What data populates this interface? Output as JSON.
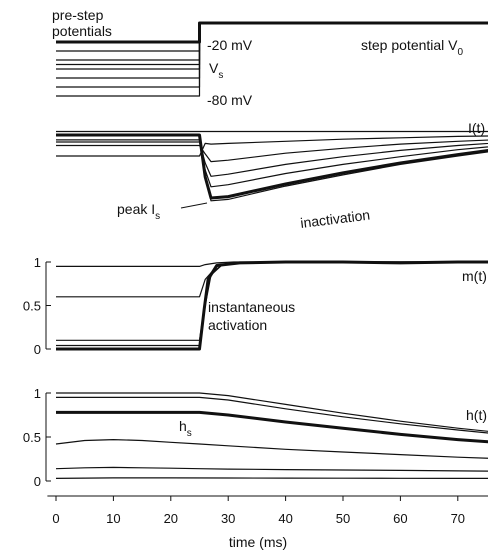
{
  "chart_data": {
    "type": "line",
    "xlabel": "time (ms)",
    "xlim": [
      -1.5,
      79
    ],
    "x_ticks": [
      0,
      10,
      20,
      30,
      40,
      50,
      60,
      70
    ],
    "step_time": 25,
    "panels": [
      {
        "id": "voltage",
        "labels": {
          "prestep": [
            "pre-step",
            "potentials"
          ],
          "top_value": "-20 mV",
          "vs": "V",
          "vs_sub": "s",
          "bottom_value": "-80 mV",
          "step": "step potential  V",
          "step_sub": "0"
        },
        "series": [
          {
            "pre": -20,
            "post": 30,
            "thick": true
          },
          {
            "pre": -30,
            "post": 30
          },
          {
            "pre": -40,
            "post": 30
          },
          {
            "pre": -45,
            "post": 30
          },
          {
            "pre": -50,
            "post": 30
          },
          {
            "pre": -60,
            "post": 30
          },
          {
            "pre": -70,
            "post": 30
          },
          {
            "pre": -80,
            "post": 30
          }
        ]
      },
      {
        "id": "current",
        "labels": {
          "trace": "I(t)",
          "peak": "peak  I",
          "peak_sub": "s",
          "inactivation": "inactivation"
        },
        "series": [
          {
            "x": [
              0,
              25,
              26,
              27,
              30,
              40,
              50,
              60,
              70,
              79
            ],
            "y": [
              1.0,
              1.0,
              0.4,
              0.1,
              0.12,
              0.3,
              0.46,
              0.6,
              0.72,
              0.82
            ],
            "thick": true
          },
          {
            "x": [
              0,
              25,
              26,
              27,
              30,
              40,
              50,
              60,
              70,
              79
            ],
            "y": [
              1.0,
              1.0,
              0.4,
              0.06,
              0.08,
              0.27,
              0.43,
              0.58,
              0.7,
              0.8
            ]
          },
          {
            "x": [
              0,
              25,
              26,
              27,
              30,
              40,
              50,
              60,
              70,
              79
            ],
            "y": [
              0.93,
              0.93,
              0.5,
              0.26,
              0.29,
              0.45,
              0.58,
              0.69,
              0.79,
              0.86
            ]
          },
          {
            "x": [
              0,
              25,
              26,
              27,
              30,
              40,
              50,
              60,
              70,
              79
            ],
            "y": [
              0.9,
              0.9,
              0.6,
              0.41,
              0.44,
              0.58,
              0.69,
              0.78,
              0.85,
              0.9
            ]
          },
          {
            "x": [
              0,
              25,
              26,
              27,
              30,
              40,
              50,
              60,
              70,
              79
            ],
            "y": [
              0.85,
              0.85,
              0.73,
              0.62,
              0.64,
              0.74,
              0.81,
              0.87,
              0.91,
              0.94
            ]
          },
          {
            "x": [
              0,
              25,
              26,
              27,
              30,
              40,
              50,
              60,
              70,
              79
            ],
            "y": [
              0.7,
              0.7,
              0.88,
              0.87,
              0.88,
              0.91,
              0.94,
              0.96,
              0.98,
              0.99
            ]
          },
          {
            "x": [
              0,
              25,
              79
            ],
            "y": [
              1.05,
              1.05,
              1.05
            ]
          }
        ]
      },
      {
        "id": "activation",
        "labels": {
          "trace": "m(t)",
          "annotation": [
            "instantaneous",
            "activation"
          ]
        },
        "ylim": [
          0,
          1
        ],
        "y_ticks": [
          0,
          0.5,
          1
        ],
        "y_tick_labels": [
          "0",
          "0.5",
          "1"
        ],
        "series": [
          {
            "x": [
              0,
              25,
              25.8,
              26.5,
              28,
              32,
              40,
              50,
              60,
              70,
              79
            ],
            "y": [
              0,
              0,
              0.45,
              0.8,
              0.96,
              0.99,
              1,
              1,
              0.99,
              1,
              1
            ],
            "thick": true
          },
          {
            "x": [
              0,
              25,
              26,
              27,
              29,
              32,
              40,
              79
            ],
            "y": [
              0.04,
              0.04,
              0.5,
              0.85,
              0.97,
              0.99,
              1,
              1
            ]
          },
          {
            "x": [
              0,
              25,
              26,
              27,
              29,
              32,
              40,
              79
            ],
            "y": [
              0.1,
              0.1,
              0.55,
              0.87,
              0.97,
              0.99,
              1,
              1
            ]
          },
          {
            "x": [
              0,
              25,
              26,
              28,
              31,
              40,
              79
            ],
            "y": [
              0.6,
              0.6,
              0.8,
              0.95,
              0.99,
              1,
              1
            ]
          },
          {
            "x": [
              0,
              25,
              26,
              28,
              31,
              40,
              79
            ],
            "y": [
              0.95,
              0.95,
              0.97,
              0.99,
              1,
              1,
              1
            ]
          }
        ]
      },
      {
        "id": "inactivation",
        "labels": {
          "trace": "h(t)",
          "hs": "h",
          "hs_sub": "s"
        },
        "ylim": [
          0,
          1
        ],
        "y_ticks": [
          0,
          0.5,
          1
        ],
        "y_tick_labels": [
          "0",
          "0.5",
          "1"
        ],
        "series": [
          {
            "x": [
              0,
              25,
              30,
              40,
              50,
              60,
              70,
              79
            ],
            "y": [
              0.78,
              0.78,
              0.75,
              0.67,
              0.6,
              0.53,
              0.47,
              0.43
            ],
            "thick": true
          },
          {
            "x": [
              0,
              25,
              30,
              40,
              50,
              60,
              70,
              79
            ],
            "y": [
              1.0,
              1.0,
              0.97,
              0.87,
              0.77,
              0.68,
              0.6,
              0.54
            ]
          },
          {
            "x": [
              0,
              25,
              30,
              40,
              50,
              60,
              70,
              79
            ],
            "y": [
              0.95,
              0.95,
              0.92,
              0.82,
              0.73,
              0.65,
              0.58,
              0.52
            ]
          },
          {
            "x": [
              0,
              5,
              10,
              15,
              20,
              25,
              30,
              40,
              50,
              60,
              70,
              79
            ],
            "y": [
              0.42,
              0.46,
              0.47,
              0.46,
              0.44,
              0.42,
              0.4,
              0.36,
              0.33,
              0.3,
              0.27,
              0.25
            ]
          },
          {
            "x": [
              0,
              5,
              10,
              15,
              20,
              25,
              30,
              40,
              50,
              60,
              70,
              79
            ],
            "y": [
              0.14,
              0.15,
              0.155,
              0.15,
              0.145,
              0.14,
              0.135,
              0.13,
              0.125,
              0.12,
              0.115,
              0.11
            ]
          },
          {
            "x": [
              0,
              10,
              20,
              30,
              40,
              50,
              60,
              70,
              79
            ],
            "y": [
              0.03,
              0.035,
              0.035,
              0.034,
              0.033,
              0.032,
              0.031,
              0.03,
              0.03
            ]
          }
        ]
      }
    ]
  }
}
